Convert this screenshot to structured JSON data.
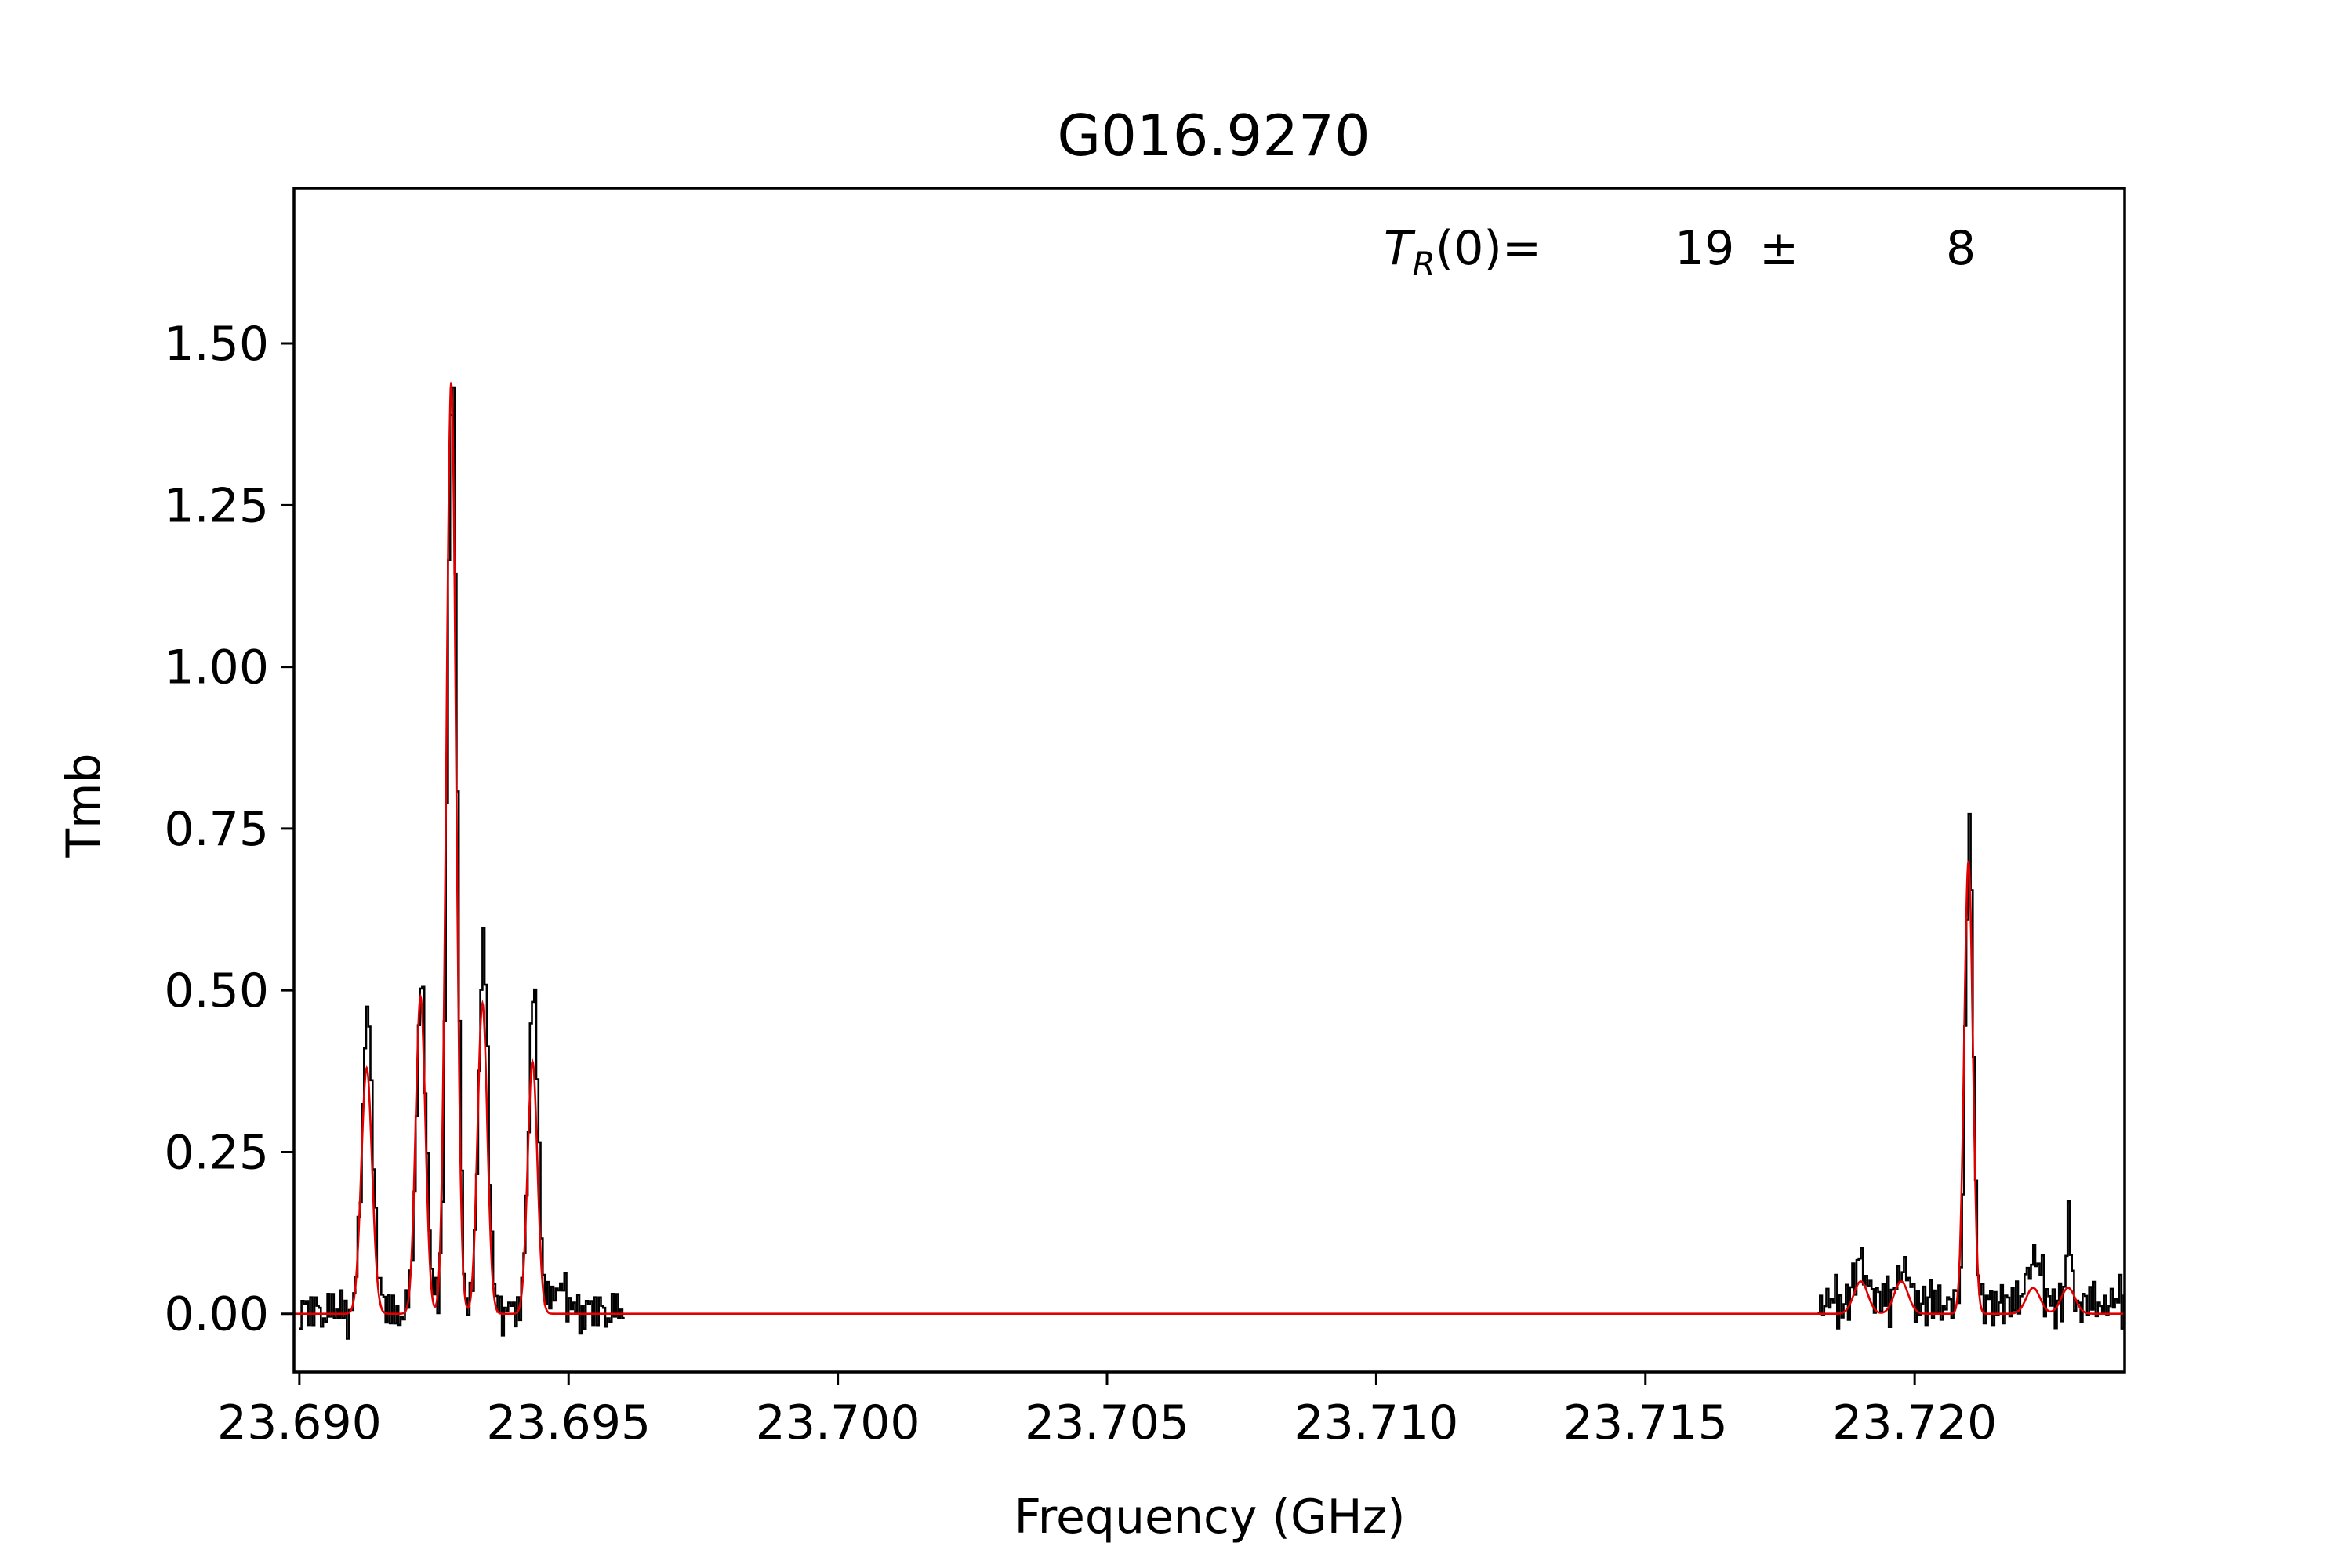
{
  "chart_data": {
    "type": "line",
    "title": "G016.9270",
    "xlabel": "Frequency (GHz)",
    "ylabel": "Tmb",
    "xlim": [
      23.6899,
      23.7239
    ],
    "ylim": [
      -0.09,
      1.74
    ],
    "x_ticks": [
      23.69,
      23.695,
      23.7,
      23.705,
      23.71,
      23.715,
      23.72
    ],
    "x_tick_labels": [
      "23.690",
      "23.695",
      "23.700",
      "23.705",
      "23.710",
      "23.715",
      "23.720"
    ],
    "y_ticks": [
      0.0,
      0.25,
      0.5,
      0.75,
      1.0,
      1.25,
      1.5
    ],
    "y_tick_labels": [
      "0.00",
      "0.25",
      "0.50",
      "0.75",
      "1.00",
      "1.25",
      "1.50"
    ],
    "grid": false,
    "annotation": {
      "label_main": "T",
      "label_sub": "R",
      "label_rest": "(0)=",
      "value": "19",
      "pm": "±",
      "error": "8"
    },
    "series": [
      {
        "color": "#000000",
        "style": "step",
        "segments": [
          {
            "x_start": 23.69,
            "x_end": 23.696,
            "baseline": [
              [
                0.0,
                -0.01
              ],
              [
                0.003,
                0.03
              ],
              [
                -0.004,
                0.01
              ],
              [
                0.002,
                0.04
              ],
              [
                -0.003,
                -0.02
              ],
              [
                0.001,
                0.02
              ],
              [
                0.004,
                -0.01
              ],
              [
                -0.002,
                0.03
              ],
              [
                0.003,
                0.0
              ],
              [
                -0.001,
                0.02
              ],
              [
                0.002,
                -0.03
              ],
              [
                -0.004,
                0.01
              ]
            ]
          },
          {
            "x_start": 23.7182,
            "x_end": 23.7239,
            "baseline": [
              [
                0.0,
                0.02
              ],
              [
                -0.003,
                0.04
              ],
              [
                0.002,
                -0.01
              ],
              [
                0.004,
                0.03
              ],
              [
                -0.001,
                0.05
              ],
              [
                0.003,
                0.0
              ],
              [
                -0.002,
                0.04
              ],
              [
                0.001,
                0.02
              ],
              [
                -0.004,
                0.06
              ],
              [
                0.002,
                -0.02
              ],
              [
                0.003,
                0.03
              ],
              [
                -0.001,
                0.01
              ]
            ]
          }
        ],
        "peaks": [
          [
            23.69125,
            0.46,
            0.0001
          ],
          [
            23.69225,
            0.51,
            9e-05
          ],
          [
            23.69282,
            1.45,
            9e-05
          ],
          [
            23.6934,
            0.56,
            9e-05
          ],
          [
            23.69433,
            0.5,
            9e-05
          ],
          [
            23.6948,
            0.04,
            0.00012
          ],
          [
            23.719,
            0.06,
            0.00013
          ],
          [
            23.71975,
            0.05,
            0.00013
          ],
          [
            23.721,
            0.75,
            7e-05
          ],
          [
            23.7222,
            0.07,
            0.00013
          ],
          [
            23.72285,
            0.14,
            4e-05
          ]
        ]
      },
      {
        "color": "#e00000",
        "style": "line",
        "x_start": 23.6899,
        "x_end": 23.7239,
        "peaks": [
          [
            23.69125,
            0.38,
            0.0001
          ],
          [
            23.69225,
            0.49,
            9e-05
          ],
          [
            23.69282,
            1.44,
            9e-05
          ],
          [
            23.6934,
            0.48,
            9e-05
          ],
          [
            23.69433,
            0.39,
            9e-05
          ],
          [
            23.719,
            0.05,
            0.00013
          ],
          [
            23.71975,
            0.05,
            0.00013
          ],
          [
            23.721,
            0.7,
            8e-05
          ],
          [
            23.7222,
            0.04,
            0.00013
          ],
          [
            23.72285,
            0.04,
            0.00013
          ]
        ]
      }
    ]
  }
}
